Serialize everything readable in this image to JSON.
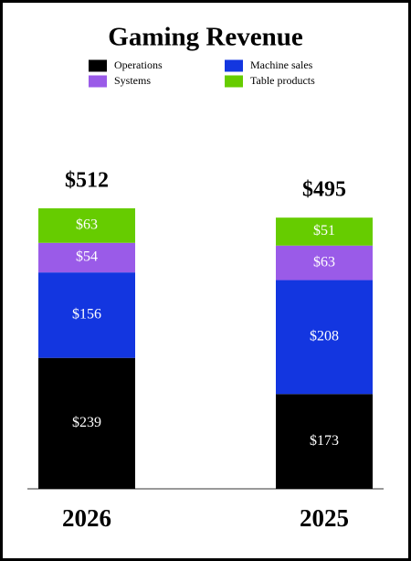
{
  "chart_data": {
    "type": "stacked_bar",
    "title": "Gaming Revenue",
    "categories": [
      "2026",
      "2025"
    ],
    "series": [
      {
        "name": "Operations",
        "color": "#000000",
        "values": [
          239,
          173
        ],
        "value_labels": [
          "$239",
          "$173"
        ]
      },
      {
        "name": "Machine sales",
        "color": "#1336e0",
        "values": [
          156,
          208
        ],
        "value_labels": [
          "$156",
          "$208"
        ]
      },
      {
        "name": "Systems",
        "color": "#9a5be8",
        "values": [
          54,
          63
        ],
        "value_labels": [
          "$54",
          "$63"
        ]
      },
      {
        "name": "Table products",
        "color": "#66cc00",
        "values": [
          63,
          51
        ],
        "value_labels": [
          "$63",
          "$51"
        ]
      }
    ],
    "totals": [
      512,
      495
    ],
    "total_labels": [
      "$512",
      "$495"
    ]
  }
}
